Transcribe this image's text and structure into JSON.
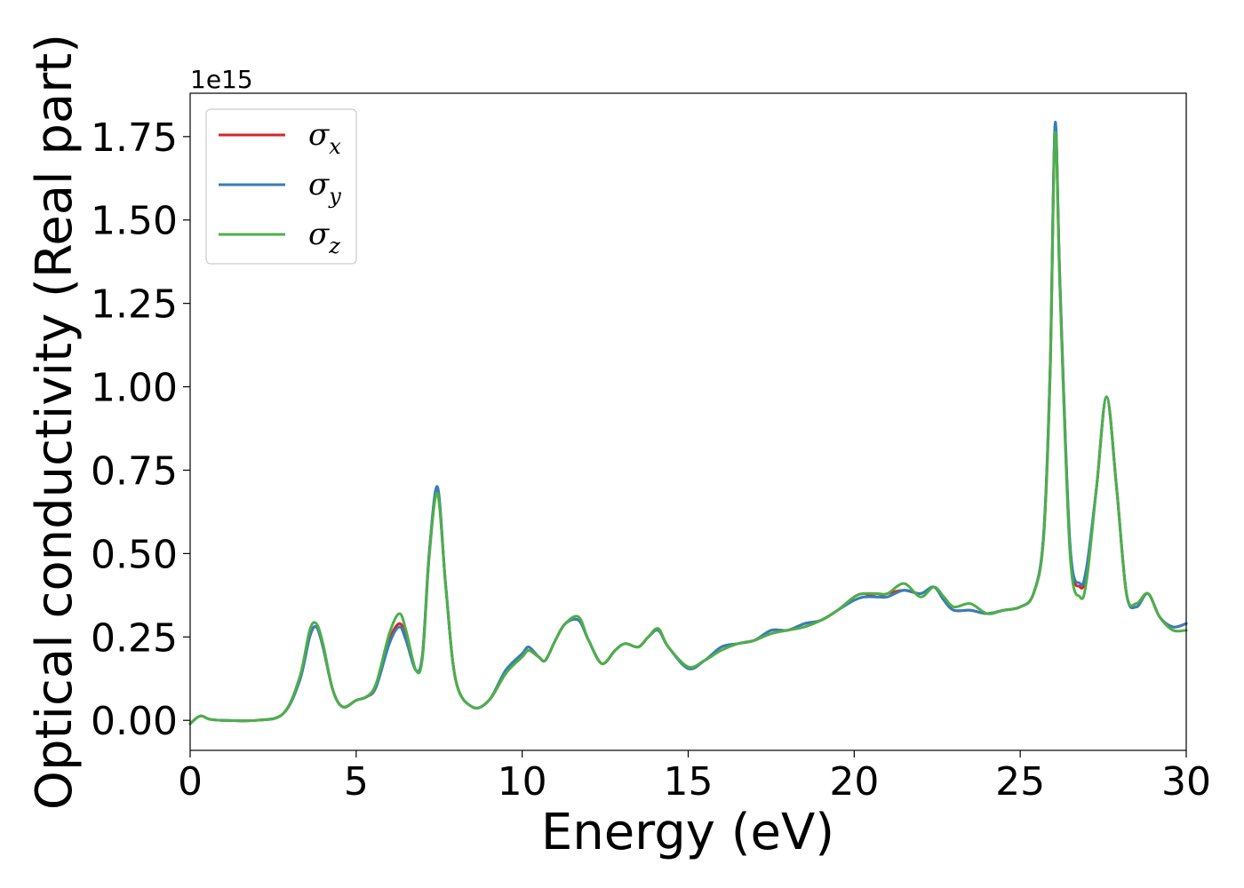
{
  "chart_data": {
    "type": "line",
    "xlabel": "Energy (eV)",
    "ylabel": "Optical conductivity (Real part)",
    "y_offset_label": "1e15",
    "xlim": [
      0,
      30
    ],
    "ylim": [
      -0.09,
      1.88
    ],
    "x_ticks": [
      0,
      5,
      10,
      15,
      20,
      25,
      30
    ],
    "x_tick_labels": [
      "0",
      "5",
      "10",
      "15",
      "20",
      "25",
      "30"
    ],
    "y_ticks": [
      0,
      0.25,
      0.5,
      0.75,
      1.0,
      1.25,
      1.5,
      1.75
    ],
    "y_tick_labels": [
      "0.00",
      "0.25",
      "0.50",
      "0.75",
      "1.00",
      "1.25",
      "1.50",
      "1.75"
    ],
    "grid": false,
    "legend_position": "top-left",
    "series": [
      {
        "name": "σx",
        "symbol": "σ",
        "subscript": "x",
        "color": "#d62728",
        "x": [
          0,
          0.3,
          0.6,
          1,
          2,
          2.8,
          3.3,
          3.6,
          3.8,
          4.0,
          4.3,
          4.6,
          5.0,
          5.3,
          5.6,
          6.0,
          6.3,
          6.5,
          6.8,
          7.0,
          7.2,
          7.45,
          7.7,
          8.0,
          8.5,
          9.0,
          9.5,
          10.0,
          10.2,
          10.5,
          10.7,
          11.0,
          11.3,
          11.7,
          12.0,
          12.4,
          12.8,
          13.1,
          13.5,
          13.8,
          14.1,
          14.4,
          15.0,
          15.5,
          16.0,
          16.5,
          17.0,
          17.5,
          18.0,
          18.5,
          19.0,
          19.5,
          20.0,
          20.3,
          20.7,
          21.0,
          21.5,
          22.0,
          22.4,
          22.7,
          23.0,
          23.5,
          24.0,
          24.5,
          25.0,
          25.4,
          25.7,
          25.9,
          26.05,
          26.2,
          26.5,
          26.8,
          27.0,
          27.3,
          27.6,
          27.9,
          28.2,
          28.5,
          28.85,
          29.2,
          29.6,
          30.0
        ],
        "y": [
          -0.01,
          0.013,
          0.003,
          0.0,
          0.0,
          0.02,
          0.12,
          0.25,
          0.28,
          0.22,
          0.09,
          0.04,
          0.06,
          0.07,
          0.1,
          0.24,
          0.29,
          0.25,
          0.15,
          0.2,
          0.5,
          0.69,
          0.4,
          0.12,
          0.04,
          0.06,
          0.14,
          0.2,
          0.21,
          0.19,
          0.18,
          0.24,
          0.29,
          0.3,
          0.24,
          0.17,
          0.21,
          0.23,
          0.22,
          0.25,
          0.27,
          0.22,
          0.16,
          0.18,
          0.22,
          0.23,
          0.24,
          0.27,
          0.27,
          0.29,
          0.3,
          0.33,
          0.37,
          0.38,
          0.37,
          0.38,
          0.39,
          0.38,
          0.4,
          0.36,
          0.33,
          0.33,
          0.32,
          0.33,
          0.34,
          0.38,
          0.55,
          1.05,
          1.78,
          1.3,
          0.52,
          0.4,
          0.45,
          0.7,
          0.97,
          0.7,
          0.38,
          0.35,
          0.38,
          0.31,
          0.28,
          0.29
        ]
      },
      {
        "name": "σy",
        "symbol": "σ",
        "subscript": "y",
        "color": "#377eb8",
        "x": [
          0,
          0.3,
          0.6,
          1,
          2,
          2.8,
          3.3,
          3.6,
          3.8,
          4.0,
          4.3,
          4.6,
          5.0,
          5.3,
          5.6,
          6.0,
          6.3,
          6.5,
          6.8,
          7.0,
          7.2,
          7.45,
          7.7,
          8.0,
          8.5,
          9.0,
          9.5,
          10.0,
          10.2,
          10.5,
          10.7,
          11.0,
          11.3,
          11.7,
          12.0,
          12.4,
          12.8,
          13.1,
          13.5,
          13.8,
          14.1,
          14.4,
          15.0,
          15.5,
          16.0,
          16.5,
          17.0,
          17.5,
          18.0,
          18.5,
          19.0,
          19.5,
          20.0,
          20.3,
          20.7,
          21.0,
          21.5,
          22.0,
          22.4,
          22.7,
          23.0,
          23.5,
          24.0,
          24.5,
          25.0,
          25.4,
          25.7,
          25.9,
          26.05,
          26.2,
          26.5,
          26.8,
          27.0,
          27.3,
          27.6,
          27.9,
          28.2,
          28.5,
          28.85,
          29.2,
          29.6,
          30.0
        ],
        "y": [
          -0.01,
          0.013,
          0.003,
          0.0,
          0.0,
          0.02,
          0.12,
          0.25,
          0.28,
          0.22,
          0.09,
          0.04,
          0.06,
          0.07,
          0.1,
          0.23,
          0.28,
          0.24,
          0.15,
          0.2,
          0.5,
          0.7,
          0.4,
          0.12,
          0.04,
          0.06,
          0.15,
          0.2,
          0.22,
          0.19,
          0.18,
          0.24,
          0.29,
          0.3,
          0.24,
          0.17,
          0.21,
          0.23,
          0.22,
          0.25,
          0.27,
          0.22,
          0.155,
          0.18,
          0.22,
          0.23,
          0.24,
          0.27,
          0.27,
          0.29,
          0.3,
          0.33,
          0.36,
          0.37,
          0.37,
          0.37,
          0.39,
          0.38,
          0.4,
          0.36,
          0.33,
          0.33,
          0.32,
          0.33,
          0.34,
          0.38,
          0.55,
          1.05,
          1.79,
          1.3,
          0.53,
          0.41,
          0.46,
          0.7,
          0.97,
          0.7,
          0.38,
          0.34,
          0.38,
          0.31,
          0.28,
          0.29
        ]
      },
      {
        "name": "σz",
        "symbol": "σ",
        "subscript": "z",
        "color": "#4daf4a",
        "x": [
          0,
          0.3,
          0.6,
          1,
          2,
          2.8,
          3.3,
          3.6,
          3.8,
          4.0,
          4.3,
          4.6,
          5.0,
          5.3,
          5.6,
          6.0,
          6.3,
          6.5,
          6.8,
          7.0,
          7.2,
          7.45,
          7.7,
          8.0,
          8.5,
          9.0,
          9.5,
          10.0,
          10.2,
          10.5,
          10.7,
          11.0,
          11.3,
          11.7,
          12.0,
          12.4,
          12.8,
          13.1,
          13.5,
          13.8,
          14.1,
          14.4,
          15.0,
          15.5,
          16.0,
          16.5,
          17.0,
          17.5,
          18.0,
          18.5,
          19.0,
          19.5,
          20.0,
          20.3,
          20.7,
          21.0,
          21.5,
          22.0,
          22.4,
          22.7,
          23.0,
          23.5,
          24.0,
          24.5,
          25.0,
          25.4,
          25.7,
          25.9,
          26.05,
          26.2,
          26.5,
          26.8,
          27.0,
          27.3,
          27.6,
          27.9,
          28.2,
          28.5,
          28.85,
          29.2,
          29.6,
          30.0
        ],
        "y": [
          -0.01,
          0.013,
          0.003,
          0.0,
          0.0,
          0.02,
          0.13,
          0.27,
          0.29,
          0.23,
          0.09,
          0.04,
          0.06,
          0.07,
          0.11,
          0.26,
          0.32,
          0.27,
          0.15,
          0.19,
          0.49,
          0.68,
          0.4,
          0.12,
          0.04,
          0.06,
          0.14,
          0.19,
          0.21,
          0.19,
          0.18,
          0.24,
          0.29,
          0.31,
          0.24,
          0.17,
          0.21,
          0.23,
          0.22,
          0.25,
          0.275,
          0.22,
          0.16,
          0.18,
          0.21,
          0.23,
          0.24,
          0.26,
          0.27,
          0.28,
          0.3,
          0.33,
          0.37,
          0.38,
          0.38,
          0.38,
          0.41,
          0.37,
          0.4,
          0.37,
          0.34,
          0.35,
          0.32,
          0.33,
          0.34,
          0.38,
          0.54,
          1.03,
          1.76,
          1.28,
          0.5,
          0.37,
          0.42,
          0.7,
          0.97,
          0.7,
          0.38,
          0.35,
          0.38,
          0.31,
          0.27,
          0.27
        ]
      }
    ]
  }
}
